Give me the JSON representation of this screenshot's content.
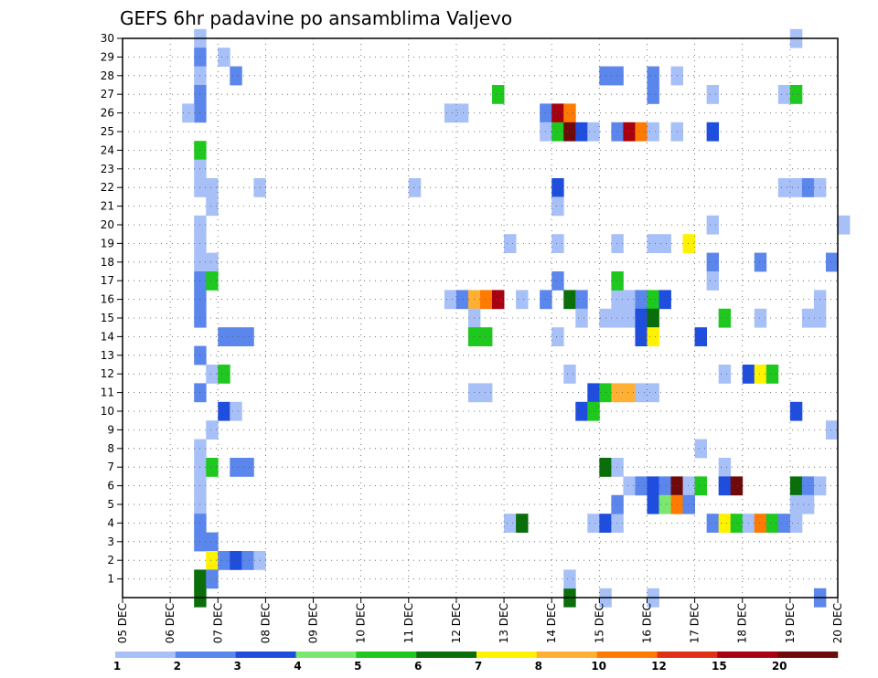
{
  "chart_data": {
    "type": "heatmap",
    "title": "GEFS 6hr padavine po ansamblima Valjevo",
    "xlabel": "",
    "ylabel": "",
    "x_start": "05 DEC 00Z",
    "time_step_hours": 6,
    "xticks": [
      "05 DEC",
      "06 DEC",
      "07 DEC",
      "08 DEC",
      "09 DEC",
      "10 DEC",
      "11 DEC",
      "12 DEC",
      "13 DEC",
      "14 DEC",
      "15 DEC",
      "16 DEC",
      "17 DEC",
      "18 DEC",
      "19 DEC",
      "20 DEC"
    ],
    "yticks": [
      "1",
      "2",
      "3",
      "4",
      "5",
      "6",
      "7",
      "8",
      "9",
      "10",
      "11",
      "12",
      "13",
      "14",
      "15",
      "16",
      "17",
      "18",
      "19",
      "20",
      "21",
      "22",
      "23",
      "24",
      "25",
      "26",
      "27",
      "28",
      "29",
      "30"
    ],
    "ylim": [
      0,
      30
    ],
    "grid": true,
    "colorbar": {
      "labels": [
        "1",
        "2",
        "3",
        "4",
        "5",
        "6",
        "7",
        "8",
        "10",
        "12",
        "15",
        "20"
      ],
      "colors": [
        "#a8c0f8",
        "#5b86ec",
        "#1f4ede",
        "#7ae870",
        "#1ec81e",
        "#0a6e0a",
        "#fff200",
        "#ffb032",
        "#ff7a00",
        "#e03018",
        "#a80010",
        "#6e0a0a"
      ]
    },
    "units_note": "cells: [timestep_index, member, color_index]",
    "cells": [
      [
        6,
        30,
        0
      ],
      [
        6,
        29,
        1
      ],
      [
        6,
        28,
        0
      ],
      [
        6,
        27,
        1
      ],
      [
        6,
        26,
        1
      ],
      [
        6,
        24,
        4
      ],
      [
        6,
        23,
        0
      ],
      [
        6,
        22,
        0
      ],
      [
        6,
        20,
        0
      ],
      [
        6,
        19,
        0
      ],
      [
        6,
        18,
        0
      ],
      [
        6,
        17,
        1
      ],
      [
        6,
        16,
        1
      ],
      [
        6,
        15,
        1
      ],
      [
        6,
        13,
        1
      ],
      [
        6,
        11,
        1
      ],
      [
        6,
        8,
        0
      ],
      [
        6,
        7,
        0
      ],
      [
        6,
        6,
        0
      ],
      [
        6,
        5,
        0
      ],
      [
        6,
        4,
        1
      ],
      [
        6,
        3,
        1
      ],
      [
        6,
        1,
        5
      ],
      [
        6,
        0,
        5
      ],
      [
        5,
        26,
        0
      ],
      [
        7,
        22,
        0
      ],
      [
        7,
        21,
        0
      ],
      [
        7,
        18,
        0
      ],
      [
        7,
        17,
        4
      ],
      [
        7,
        12,
        0
      ],
      [
        7,
        9,
        0
      ],
      [
        7,
        7,
        4
      ],
      [
        7,
        3,
        1
      ],
      [
        7,
        2,
        6
      ],
      [
        7,
        1,
        1
      ],
      [
        8,
        29,
        0
      ],
      [
        8,
        12,
        4
      ],
      [
        8,
        14,
        1
      ],
      [
        8,
        10,
        2
      ],
      [
        8,
        2,
        1
      ],
      [
        9,
        28,
        1
      ],
      [
        9,
        14,
        1
      ],
      [
        9,
        10,
        0
      ],
      [
        9,
        7,
        1
      ],
      [
        9,
        2,
        2
      ],
      [
        10,
        14,
        1
      ],
      [
        10,
        7,
        1
      ],
      [
        10,
        2,
        1
      ],
      [
        11,
        2,
        0
      ],
      [
        11,
        22,
        0
      ],
      [
        24,
        22,
        0
      ],
      [
        27,
        26,
        0
      ],
      [
        28,
        26,
        0
      ],
      [
        27,
        16,
        0
      ],
      [
        28,
        16,
        1
      ],
      [
        29,
        16,
        7
      ],
      [
        29,
        15,
        0
      ],
      [
        29,
        14,
        4
      ],
      [
        29,
        11,
        0
      ],
      [
        30,
        16,
        8
      ],
      [
        30,
        14,
        4
      ],
      [
        30,
        11,
        0
      ],
      [
        31,
        16,
        10
      ],
      [
        31,
        27,
        4
      ],
      [
        32,
        19,
        0
      ],
      [
        32,
        4,
        0
      ],
      [
        33,
        16,
        0
      ],
      [
        33,
        4,
        5
      ],
      [
        35,
        26,
        1
      ],
      [
        35,
        25,
        0
      ],
      [
        35,
        16,
        1
      ],
      [
        36,
        26,
        10
      ],
      [
        36,
        25,
        4
      ],
      [
        36,
        19,
        0
      ],
      [
        36,
        17,
        1
      ],
      [
        36,
        14,
        0
      ],
      [
        36,
        22,
        2
      ],
      [
        36,
        21,
        0
      ],
      [
        37,
        26,
        8
      ],
      [
        37,
        25,
        11
      ],
      [
        37,
        0,
        5
      ],
      [
        37,
        1,
        0
      ],
      [
        37,
        16,
        5
      ],
      [
        37,
        12,
        0
      ],
      [
        38,
        25,
        2
      ],
      [
        38,
        16,
        1
      ],
      [
        38,
        10,
        2
      ],
      [
        38,
        15,
        0
      ],
      [
        39,
        25,
        0
      ],
      [
        39,
        11,
        2
      ],
      [
        39,
        10,
        4
      ],
      [
        39,
        4,
        0
      ],
      [
        40,
        28,
        1
      ],
      [
        40,
        11,
        4
      ],
      [
        40,
        4,
        2
      ],
      [
        40,
        7,
        5
      ],
      [
        40,
        0,
        0
      ],
      [
        40,
        15,
        0
      ],
      [
        41,
        28,
        1
      ],
      [
        41,
        25,
        1
      ],
      [
        41,
        19,
        0
      ],
      [
        41,
        16,
        0
      ],
      [
        41,
        11,
        7
      ],
      [
        41,
        17,
        4
      ],
      [
        41,
        15,
        0
      ],
      [
        41,
        7,
        0
      ],
      [
        41,
        4,
        0
      ],
      [
        41,
        5,
        1
      ],
      [
        42,
        25,
        10
      ],
      [
        42,
        16,
        0
      ],
      [
        42,
        15,
        0
      ],
      [
        42,
        11,
        7
      ],
      [
        42,
        6,
        0
      ],
      [
        43,
        25,
        8
      ],
      [
        43,
        16,
        1
      ],
      [
        43,
        15,
        2
      ],
      [
        43,
        14,
        2
      ],
      [
        43,
        11,
        0
      ],
      [
        43,
        6,
        1
      ],
      [
        44,
        28,
        1
      ],
      [
        44,
        27,
        1
      ],
      [
        44,
        25,
        0
      ],
      [
        44,
        19,
        0
      ],
      [
        44,
        16,
        4
      ],
      [
        44,
        15,
        5
      ],
      [
        44,
        14,
        6
      ],
      [
        44,
        11,
        0
      ],
      [
        44,
        6,
        2
      ],
      [
        44,
        5,
        2
      ],
      [
        44,
        0,
        0
      ],
      [
        45,
        16,
        2
      ],
      [
        45,
        19,
        0
      ],
      [
        45,
        6,
        1
      ],
      [
        45,
        5,
        3
      ],
      [
        46,
        28,
        0
      ],
      [
        46,
        25,
        0
      ],
      [
        46,
        6,
        11
      ],
      [
        46,
        5,
        8
      ],
      [
        47,
        19,
        6
      ],
      [
        47,
        6,
        0
      ],
      [
        47,
        5,
        1
      ],
      [
        48,
        14,
        2
      ],
      [
        48,
        8,
        0
      ],
      [
        48,
        6,
        4
      ],
      [
        49,
        27,
        0
      ],
      [
        49,
        20,
        0
      ],
      [
        49,
        18,
        1
      ],
      [
        49,
        17,
        0
      ],
      [
        49,
        4,
        1
      ],
      [
        49,
        25,
        2
      ],
      [
        50,
        15,
        4
      ],
      [
        50,
        12,
        0
      ],
      [
        50,
        4,
        6
      ],
      [
        50,
        7,
        0
      ],
      [
        50,
        6,
        2
      ],
      [
        51,
        6,
        11
      ],
      [
        51,
        4,
        4
      ],
      [
        52,
        12,
        2
      ],
      [
        52,
        4,
        0
      ],
      [
        53,
        18,
        1
      ],
      [
        53,
        15,
        0
      ],
      [
        53,
        12,
        6
      ],
      [
        53,
        4,
        8
      ],
      [
        54,
        12,
        4
      ],
      [
        54,
        4,
        4
      ],
      [
        55,
        27,
        0
      ],
      [
        55,
        22,
        0
      ],
      [
        55,
        4,
        1
      ],
      [
        56,
        30,
        0
      ],
      [
        56,
        27,
        4
      ],
      [
        56,
        22,
        0
      ],
      [
        56,
        10,
        2
      ],
      [
        56,
        6,
        5
      ],
      [
        56,
        5,
        0
      ],
      [
        56,
        4,
        0
      ],
      [
        57,
        22,
        1
      ],
      [
        57,
        15,
        0
      ],
      [
        57,
        6,
        1
      ],
      [
        57,
        5,
        0
      ],
      [
        58,
        22,
        0
      ],
      [
        58,
        16,
        0
      ],
      [
        58,
        15,
        0
      ],
      [
        58,
        6,
        0
      ],
      [
        58,
        0,
        1
      ],
      [
        59,
        18,
        1
      ],
      [
        59,
        9,
        0
      ],
      [
        60,
        20,
        0
      ]
    ]
  }
}
